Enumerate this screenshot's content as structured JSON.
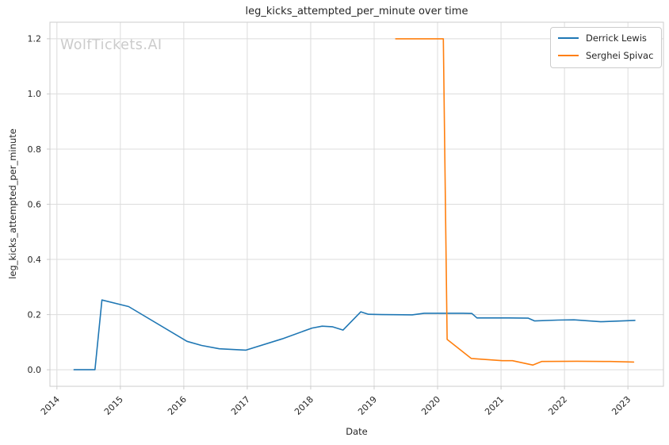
{
  "figure": {
    "watermark": "WolfTickets.AI"
  },
  "chart_data": {
    "type": "line",
    "title": "leg_kicks_attempted_per_minute over time",
    "xlabel": "Date",
    "ylabel": "leg_kicks_attempted_per_minute",
    "xlim": [
      2013.89,
      2023.56
    ],
    "ylim": [
      -0.06,
      1.26
    ],
    "grid": true,
    "legend_position": "upper right",
    "x_ticks": [
      2014,
      2015,
      2016,
      2017,
      2018,
      2019,
      2020,
      2021,
      2022,
      2023
    ],
    "x_tick_labels": [
      "2014",
      "2015",
      "2016",
      "2017",
      "2018",
      "2019",
      "2020",
      "2021",
      "2022",
      "2023"
    ],
    "y_ticks": [
      0.0,
      0.2,
      0.4,
      0.6,
      0.8,
      1.0,
      1.2
    ],
    "y_tick_labels": [
      "0.0",
      "0.2",
      "0.4",
      "0.6",
      "0.8",
      "1.0",
      "1.2"
    ],
    "colors": {
      "grid": "#dcdcdc",
      "spine": "#cccccc",
      "text": "#262626",
      "watermark": "#cbcbcb"
    },
    "series": [
      {
        "name": "Derrick Lewis",
        "color": "#1f77b4",
        "points": [
          [
            2014.27,
            0.0
          ],
          [
            2014.6,
            0.0
          ],
          [
            2014.71,
            0.253
          ],
          [
            2015.13,
            0.229
          ],
          [
            2016.05,
            0.103
          ],
          [
            2016.28,
            0.088
          ],
          [
            2016.56,
            0.076
          ],
          [
            2016.98,
            0.071
          ],
          [
            2017.55,
            0.112
          ],
          [
            2018.02,
            0.151
          ],
          [
            2018.18,
            0.158
          ],
          [
            2018.34,
            0.156
          ],
          [
            2018.51,
            0.144
          ],
          [
            2018.79,
            0.21
          ],
          [
            2018.91,
            0.201
          ],
          [
            2019.12,
            0.2
          ],
          [
            2019.6,
            0.199
          ],
          [
            2019.79,
            0.205
          ],
          [
            2020.4,
            0.205
          ],
          [
            2020.54,
            0.204
          ],
          [
            2020.62,
            0.188
          ],
          [
            2021.12,
            0.188
          ],
          [
            2021.43,
            0.187
          ],
          [
            2021.53,
            0.177
          ],
          [
            2021.9,
            0.18
          ],
          [
            2022.15,
            0.181
          ],
          [
            2022.57,
            0.174
          ],
          [
            2023.11,
            0.179
          ]
        ]
      },
      {
        "name": "Serghei Spivac",
        "color": "#ff7f0e",
        "points": [
          [
            2019.34,
            1.2
          ],
          [
            2020.09,
            1.2
          ],
          [
            2020.15,
            0.11
          ],
          [
            2020.53,
            0.041
          ],
          [
            2021.02,
            0.033
          ],
          [
            2021.18,
            0.033
          ],
          [
            2021.5,
            0.017
          ],
          [
            2021.64,
            0.03
          ],
          [
            2022.2,
            0.031
          ],
          [
            2022.72,
            0.03
          ],
          [
            2023.09,
            0.028
          ]
        ]
      }
    ]
  }
}
